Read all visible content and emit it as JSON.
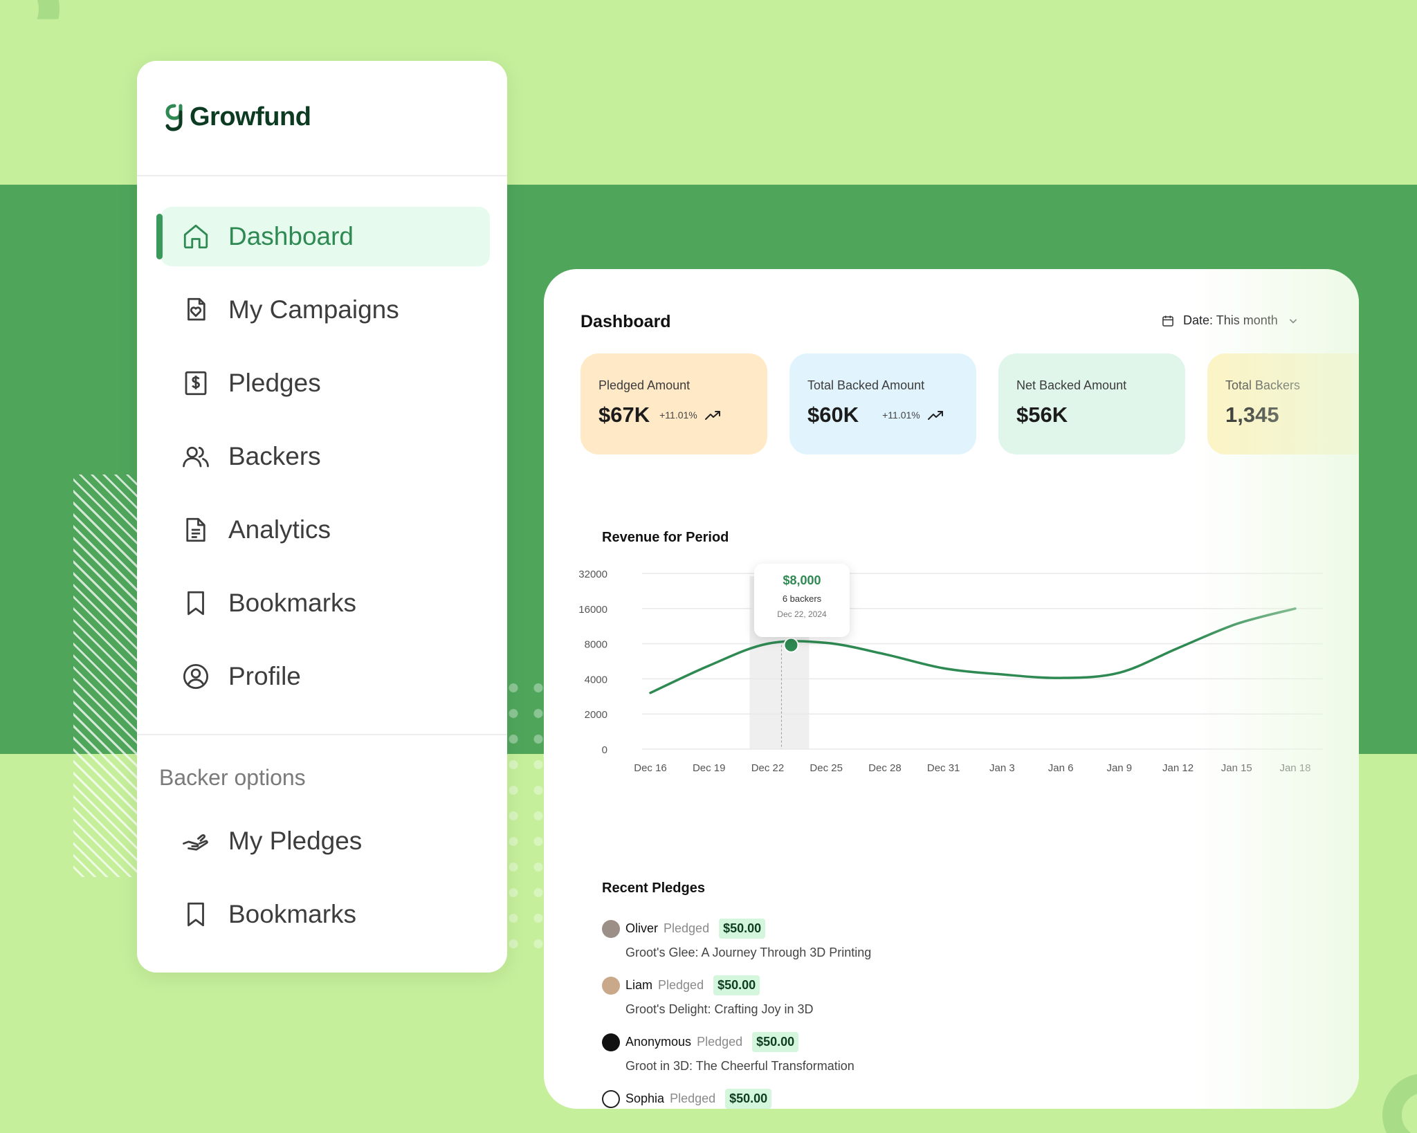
{
  "app": {
    "name": "Growfund"
  },
  "sidebar": {
    "items": [
      {
        "label": "Dashboard",
        "icon": "home-icon",
        "active": true
      },
      {
        "label": "My Campaigns",
        "icon": "campaign-heart-icon",
        "active": false
      },
      {
        "label": "Pledges",
        "icon": "dollar-receipt-icon",
        "active": false
      },
      {
        "label": "Backers",
        "icon": "users-icon",
        "active": false
      },
      {
        "label": "Analytics",
        "icon": "document-icon",
        "active": false
      },
      {
        "label": "Bookmarks",
        "icon": "bookmark-icon",
        "active": false
      },
      {
        "label": "Profile",
        "icon": "user-circle-icon",
        "active": false
      }
    ],
    "section_label": "Backer options",
    "backer_items": [
      {
        "label": "My Pledges",
        "icon": "hand-pledge-icon"
      },
      {
        "label": "Bookmarks",
        "icon": "bookmark-icon"
      }
    ]
  },
  "dashboard": {
    "title": "Dashboard",
    "date_filter": "Date: This month",
    "cards": [
      {
        "label": "Pledged Amount",
        "value": "$67K",
        "change": "+11.01%",
        "color": "#ffe9c6"
      },
      {
        "label": "Total Backed Amount",
        "value": "$60K",
        "change": "+11.01%",
        "color": "#e1f4fd"
      },
      {
        "label": "Net Backed Amount",
        "value": "$56K",
        "change": "",
        "color": "#e0f6ea"
      },
      {
        "label": "Total Backers",
        "value": "1,345",
        "change": "",
        "color": "#fdf3c4"
      }
    ]
  },
  "chart_data": {
    "type": "line",
    "title": "Revenue for Period",
    "y_ticks": [
      "32000",
      "16000",
      "8000",
      "4000",
      "2000",
      "0"
    ],
    "x": [
      "Dec 16",
      "Dec 19",
      "Dec 22",
      "Dec 25",
      "Dec 28",
      "Dec 31",
      "Jan 3",
      "Jan 6",
      "Jan 9",
      "Jan 12",
      "Jan 15",
      "Jan 18"
    ],
    "series": [
      {
        "values": [
          3200,
          5500,
          8000,
          8200,
          6800,
          5200,
          4500,
          4100,
          4700,
          7500,
          12500,
          16000
        ]
      }
    ],
    "line_color": "#2e8a52",
    "grid": true,
    "tooltip": {
      "amount": "$8,000",
      "backers": "6 backers",
      "date": "Dec 22, 2024",
      "index": 2
    }
  },
  "recent_pledges": {
    "title": "Recent Pledges",
    "items": [
      {
        "name": "Oliver",
        "verb": "Pledged",
        "amount": "$50.00",
        "campaign": "Groot's Glee: A Journey Through 3D Printing",
        "avatar_color": "#9b8f88"
      },
      {
        "name": "Liam",
        "verb": "Pledged",
        "amount": "$50.00",
        "campaign": "Groot's Delight: Crafting Joy in 3D",
        "avatar_color": "#c9a98a"
      },
      {
        "name": "Anonymous",
        "verb": "Pledged",
        "amount": "$50.00",
        "campaign": "Groot in 3D: The Cheerful Transformation",
        "avatar_color": "#111111"
      },
      {
        "name": "Sophia",
        "verb": "Pledged",
        "amount": "$50.00",
        "campaign": "",
        "avatar_color": "#ffffff"
      }
    ]
  }
}
